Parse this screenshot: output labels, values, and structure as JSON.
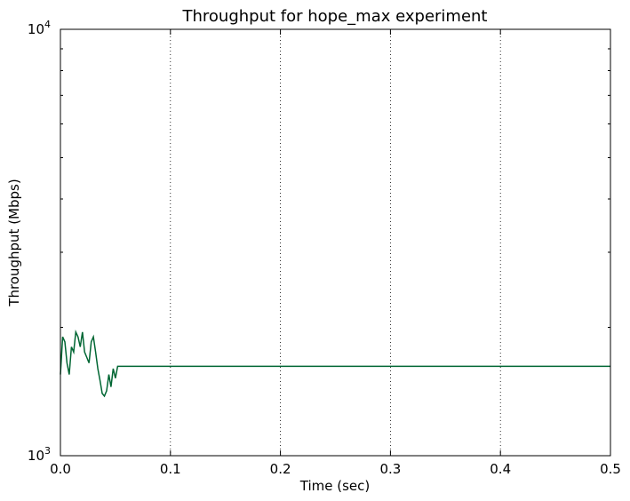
{
  "chart_data": {
    "type": "line",
    "title": "Throughput for hope_max experiment",
    "xlabel": "Time (sec)",
    "ylabel": "Throughput (Mbps)",
    "xlim": [
      0,
      0.5
    ],
    "ylim": [
      1000,
      10000
    ],
    "yscale": "log",
    "grid": "vertical dotted",
    "x_ticks": [
      {
        "value": 0.0,
        "label": "0.0"
      },
      {
        "value": 0.1,
        "label": "0.1"
      },
      {
        "value": 0.2,
        "label": "0.2"
      },
      {
        "value": 0.3,
        "label": "0.3"
      },
      {
        "value": 0.4,
        "label": "0.4"
      },
      {
        "value": 0.5,
        "label": "0.5"
      }
    ],
    "y_ticks": [
      {
        "value": 1000,
        "base": "10",
        "exp": "3"
      },
      {
        "value": 10000,
        "base": "10",
        "exp": "4"
      }
    ],
    "series": [
      {
        "color": "#006633",
        "x": [
          0.0,
          0.002,
          0.004,
          0.006,
          0.008,
          0.01,
          0.012,
          0.014,
          0.016,
          0.018,
          0.02,
          0.022,
          0.024,
          0.026,
          0.028,
          0.03,
          0.032,
          0.034,
          0.036,
          0.038,
          0.04,
          0.042,
          0.044,
          0.046,
          0.048,
          0.05,
          0.052,
          0.054,
          0.06,
          0.08,
          0.1,
          0.15,
          0.2,
          0.25,
          0.3,
          0.35,
          0.4,
          0.45,
          0.5
        ],
        "values": [
          1550,
          1900,
          1850,
          1650,
          1550,
          1800,
          1750,
          1950,
          1900,
          1800,
          1950,
          1750,
          1700,
          1650,
          1850,
          1900,
          1750,
          1600,
          1500,
          1400,
          1380,
          1420,
          1550,
          1450,
          1600,
          1520,
          1620,
          1620,
          1620,
          1620,
          1620,
          1620,
          1620,
          1620,
          1620,
          1620,
          1620,
          1620,
          1620
        ]
      }
    ]
  }
}
